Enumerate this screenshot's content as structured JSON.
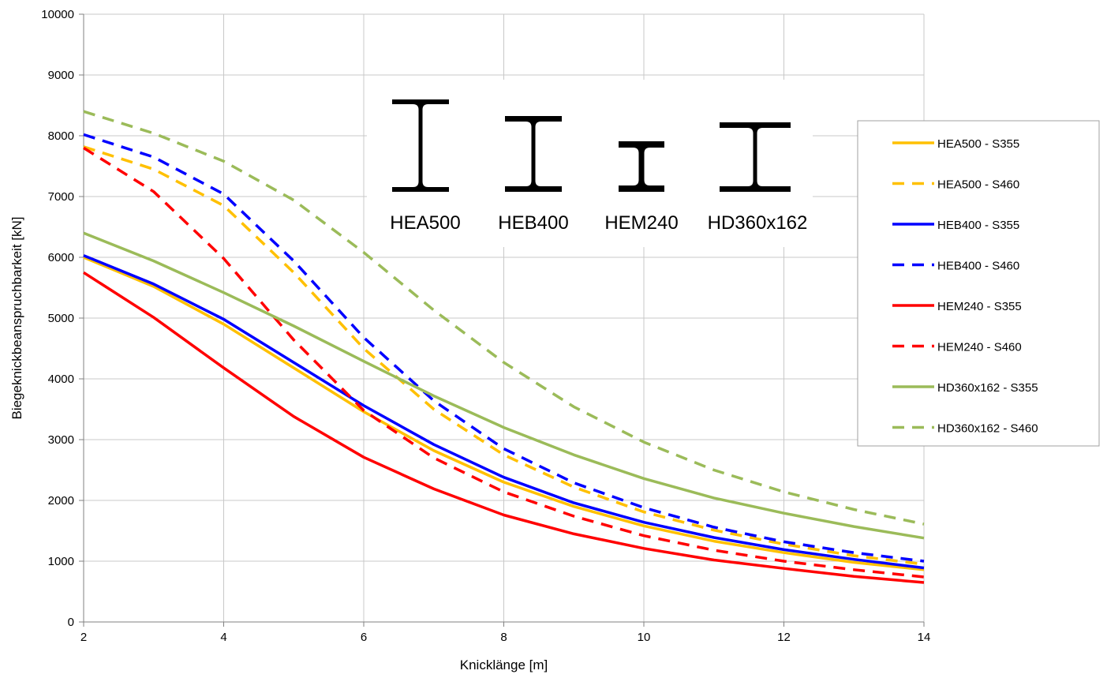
{
  "chart_data": {
    "type": "line",
    "xlabel": "Knicklänge [m]",
    "ylabel": "Biegeknickbeanspruchbarkeit [kN]",
    "xlim": [
      2,
      14
    ],
    "ylim": [
      0,
      10000
    ],
    "xticks": [
      2,
      4,
      6,
      8,
      10,
      12,
      14
    ],
    "yticks": [
      0,
      1000,
      2000,
      3000,
      4000,
      5000,
      6000,
      7000,
      8000,
      9000,
      10000
    ],
    "grid": true,
    "legend_position": "right",
    "x": [
      2,
      3,
      4,
      5,
      6,
      7,
      8,
      9,
      10,
      11,
      12,
      13,
      14
    ],
    "series": [
      {
        "name": "HEA500 - S355",
        "color": "#FFC000",
        "dash": "solid",
        "values": [
          6000,
          5520,
          4900,
          4180,
          3460,
          2820,
          2300,
          1900,
          1580,
          1330,
          1140,
          980,
          860
        ]
      },
      {
        "name": "HEA500 - S460",
        "color": "#FFC000",
        "dash": "dashed",
        "values": [
          7820,
          7450,
          6850,
          5750,
          4500,
          3500,
          2750,
          2220,
          1810,
          1510,
          1280,
          1090,
          950
        ]
      },
      {
        "name": "HEB400 - S355",
        "color": "#0000FF",
        "dash": "solid",
        "values": [
          6030,
          5560,
          4980,
          4270,
          3560,
          2920,
          2380,
          1960,
          1640,
          1390,
          1190,
          1030,
          890
        ]
      },
      {
        "name": "HEB400 - S460",
        "color": "#0000FF",
        "dash": "dashed",
        "values": [
          8020,
          7650,
          7040,
          5940,
          4680,
          3640,
          2850,
          2290,
          1880,
          1560,
          1320,
          1140,
          1000
        ]
      },
      {
        "name": "HEM240 - S355",
        "color": "#FF0000",
        "dash": "solid",
        "values": [
          5750,
          5010,
          4180,
          3380,
          2710,
          2190,
          1760,
          1450,
          1210,
          1020,
          880,
          750,
          650
        ]
      },
      {
        "name": "HEM240 - S460",
        "color": "#FF0000",
        "dash": "dashed",
        "values": [
          7800,
          7080,
          5980,
          4640,
          3480,
          2700,
          2140,
          1740,
          1420,
          1180,
          1000,
          860,
          740
        ]
      },
      {
        "name": "HD360x162 - S355",
        "color": "#9BBB59",
        "dash": "solid",
        "values": [
          6400,
          5940,
          5420,
          4870,
          4290,
          3720,
          3200,
          2750,
          2360,
          2040,
          1790,
          1570,
          1380
        ]
      },
      {
        "name": "HD360x162 - S460",
        "color": "#9BBB59",
        "dash": "dashed",
        "values": [
          8400,
          8040,
          7580,
          6940,
          6080,
          5130,
          4270,
          3540,
          2960,
          2500,
          2140,
          1850,
          1610
        ]
      }
    ],
    "annotations": {
      "profiles": [
        "HEA500",
        "HEB400",
        "HEM240",
        "HD360x162"
      ]
    }
  }
}
